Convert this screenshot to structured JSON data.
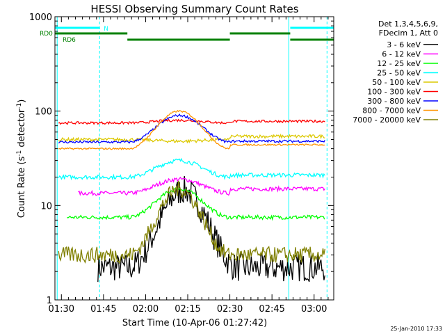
{
  "chart_data": {
    "type": "line",
    "title": "HESSI Observing Summary Count Rates",
    "xlabel": "Start Time (10-Apr-06 01:27:42)",
    "ylabel_main": "Count Rate (s",
    "ylabel_exp1": "-1",
    "ylabel_mid": " detector",
    "ylabel_exp2": "-1",
    "ylabel_end": ")",
    "ylabel": "Count Rate (s-1 detector-1)",
    "y_scale": "log",
    "ylim": [
      1,
      1000
    ],
    "y_ticks": [
      {
        "value": 1,
        "label": "1"
      },
      {
        "value": 10,
        "label": "10"
      },
      {
        "value": 100,
        "label": "100"
      },
      {
        "value": 1000,
        "label": "1000"
      }
    ],
    "xlim_minutes": [
      87.7,
      187.0
    ],
    "x_ticks": [
      {
        "minute": 90,
        "label": "01:30"
      },
      {
        "minute": 105,
        "label": "01:45"
      },
      {
        "minute": 120,
        "label": "02:00"
      },
      {
        "minute": 135,
        "label": "02:15"
      },
      {
        "minute": 150,
        "label": "02:30"
      },
      {
        "minute": 165,
        "label": "02:45"
      },
      {
        "minute": 180,
        "label": "03:00"
      }
    ],
    "legend_header": [
      "Det 1,3,4,5,6,9,",
      "FDecim 1, Att 0"
    ],
    "legend_position": "right",
    "series": [
      {
        "name": "3 - 6 keV",
        "color": "#000000"
      },
      {
        "name": "6 - 12 keV",
        "color": "#ff00ff"
      },
      {
        "name": "12 - 25 keV",
        "color": "#00ff00"
      },
      {
        "name": "25 - 50 keV",
        "color": "#00ffff"
      },
      {
        "name": "50 - 100 keV",
        "color": "#dcc800"
      },
      {
        "name": "100 - 300 keV",
        "color": "#ff0000"
      },
      {
        "name": "300 - 800 keV",
        "color": "#0000ff"
      },
      {
        "name": "800 - 7000 keV",
        "color": "#ff9400"
      },
      {
        "name": "7000 - 20000 keV",
        "color": "#808000"
      }
    ],
    "flags": [
      {
        "label": "N",
        "color": "#00ffff",
        "segments": [
          [
            87.7,
            103.6
          ],
          [
            171.5,
            187.0
          ]
        ]
      },
      {
        "label": "RD0",
        "color": "#008000",
        "segments": [
          [
            87.7,
            113.5
          ],
          [
            150.0,
            171.5
          ]
        ]
      },
      {
        "label": "RD6",
        "color": "#008000",
        "segments": [
          [
            113.5,
            150.0
          ],
          [
            171.5,
            187.0
          ]
        ]
      }
    ],
    "vertical_markers": [
      {
        "minute": 88.5,
        "color": "#00ffff",
        "style": "solid"
      },
      {
        "minute": 103.6,
        "color": "#00ffff",
        "style": "dashed"
      },
      {
        "minute": 171.0,
        "color": "#00ffff",
        "style": "solid"
      },
      {
        "minute": 184.6,
        "color": "#00ffff",
        "style": "dashed"
      }
    ]
  },
  "footer_timestamp": "25-Jan-2010 17:33"
}
